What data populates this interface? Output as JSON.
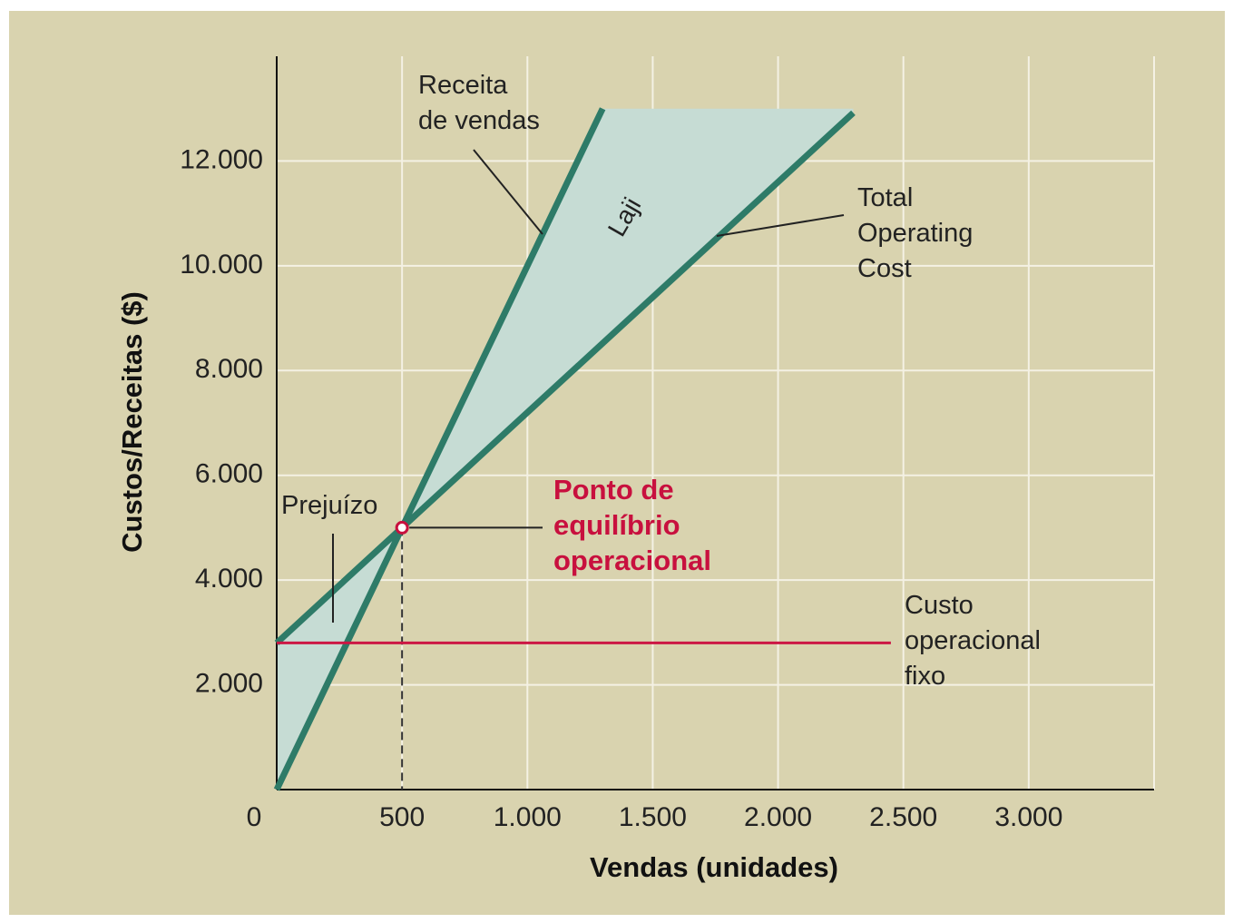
{
  "chart_data": {
    "type": "line",
    "xlabel": "Vendas (unidades)",
    "ylabel": "Custos/Receitas ($)",
    "xlim": [
      0,
      3500
    ],
    "ylim": [
      0,
      14000
    ],
    "xticks": [
      0,
      500,
      {
        "value": 1000,
        "label": "1.000"
      },
      {
        "value": 1500,
        "label": "1.500"
      },
      {
        "value": 2000,
        "label": "2.000"
      },
      {
        "value": 2500,
        "label": "2.500"
      },
      {
        "value": 3000,
        "label": "3.000"
      }
    ],
    "yticks": [
      {
        "value": 2000,
        "label": "2.000"
      },
      {
        "value": 4000,
        "label": "4.000"
      },
      {
        "value": 6000,
        "label": "6.000"
      },
      {
        "value": 8000,
        "label": "8.000"
      },
      {
        "value": 10000,
        "label": "10.000"
      },
      {
        "value": 12000,
        "label": "12.000"
      }
    ],
    "grid": true,
    "series": [
      {
        "name": "Receita\nde vendas",
        "color": "#2e7b68",
        "x": [
          0,
          1300
        ],
        "values": [
          0,
          13000
        ]
      },
      {
        "name": "Total\nOperating\nCost",
        "color": "#2e7b68",
        "x": [
          0,
          2300
        ],
        "values": [
          2800,
          12920
        ]
      },
      {
        "name": "Custo\noperacional\nfixo",
        "color": "#cc1744",
        "x": [
          0,
          2450
        ],
        "values": [
          2800,
          2800
        ]
      }
    ],
    "area_color": "#c6dcd4",
    "profit_label": "Laji",
    "loss_label": "Prejuízo",
    "break_even": {
      "x": 500,
      "y": 5000,
      "label": "Ponto de\nequilíbrio\noperacional",
      "color": "#c8103e"
    }
  }
}
